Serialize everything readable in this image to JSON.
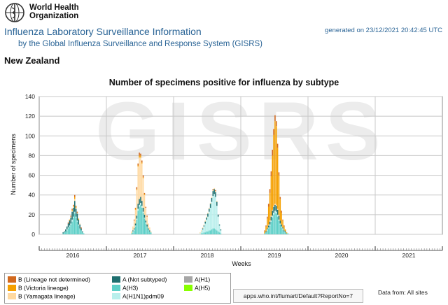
{
  "header": {
    "org_line1": "World Health",
    "org_line2": "Organization",
    "title": "Influenza Laboratory Surveillance Information",
    "subtitle": "by the Global Influenza Surveillance and Response System (GISRS)",
    "generated": "generated on 23/12/2021 20:42:45 UTC",
    "country": "New Zealand"
  },
  "watermark": "GISRS",
  "colors": {
    "b_not_determined": "#d2691e",
    "b_victoria": "#f5a000",
    "b_yamagata": "#ffd9a0",
    "a_not_subtyped": "#1f6f6f",
    "a_h3": "#5ccfc7",
    "a_h1n1pdm09": "#b9efec",
    "a_h1": "#a6a6a6",
    "a_h5": "#88ff00",
    "title_blue": "#2a6496"
  },
  "chart_data": {
    "type": "bar",
    "stacked": true,
    "title": "Number of specimens positive for influenza by subtype",
    "xlabel": "Weeks",
    "ylabel": "Number of specimens",
    "ylim": [
      0,
      140
    ],
    "yticks": [
      0,
      20,
      40,
      60,
      80,
      100,
      120,
      140
    ],
    "grid": true,
    "week_range": [
      0,
      312
    ],
    "year_labels": [
      {
        "label": "2016",
        "week": 26
      },
      {
        "label": "2017",
        "week": 78
      },
      {
        "label": "2018",
        "week": 130
      },
      {
        "label": "2019",
        "week": 182
      },
      {
        "label": "2020",
        "week": 234
      },
      {
        "label": "2021",
        "week": 286
      }
    ],
    "series": [
      {
        "key": "b_not_determined",
        "name": "B (Lineage not determined)"
      },
      {
        "key": "b_victoria",
        "name": "B (Victoria lineage)"
      },
      {
        "key": "b_yamagata",
        "name": "B (Yamagata lineage)"
      },
      {
        "key": "a_not_subtyped",
        "name": "A (Not subtyped)"
      },
      {
        "key": "a_h3",
        "name": "A(H3)"
      },
      {
        "key": "a_h1n1pdm09",
        "name": "A(H1N1)pdm09"
      },
      {
        "key": "a_h1",
        "name": "A(H1)"
      },
      {
        "key": "a_h5",
        "name": "A(H5)"
      }
    ],
    "stack_order": [
      "a_h3",
      "a_h1n1pdm09",
      "a_not_subtyped",
      "b_yamagata",
      "b_victoria",
      "b_not_determined"
    ],
    "weeks": [
      {
        "w": 18,
        "a_h3": 1,
        "a_h1n1pdm09": 0,
        "a_not_subtyped": 1,
        "b_yamagata": 0,
        "b_victoria": 0,
        "b_not_determined": 0
      },
      {
        "w": 19,
        "a_h3": 2,
        "a_h1n1pdm09": 0,
        "a_not_subtyped": 1,
        "b_yamagata": 0,
        "b_victoria": 0,
        "b_not_determined": 0
      },
      {
        "w": 20,
        "a_h3": 3,
        "a_h1n1pdm09": 0,
        "a_not_subtyped": 2,
        "b_yamagata": 0,
        "b_victoria": 0,
        "b_not_determined": 0
      },
      {
        "w": 21,
        "a_h3": 4,
        "a_h1n1pdm09": 1,
        "a_not_subtyped": 3,
        "b_yamagata": 0,
        "b_victoria": 0,
        "b_not_determined": 0
      },
      {
        "w": 22,
        "a_h3": 6,
        "a_h1n1pdm09": 1,
        "a_not_subtyped": 4,
        "b_yamagata": 0,
        "b_victoria": 0,
        "b_not_determined": 1
      },
      {
        "w": 23,
        "a_h3": 8,
        "a_h1n1pdm09": 1,
        "a_not_subtyped": 5,
        "b_yamagata": 0,
        "b_victoria": 1,
        "b_not_determined": 0
      },
      {
        "w": 24,
        "a_h3": 10,
        "a_h1n1pdm09": 1,
        "a_not_subtyped": 6,
        "b_yamagata": 1,
        "b_victoria": 0,
        "b_not_determined": 1
      },
      {
        "w": 25,
        "a_h3": 13,
        "a_h1n1pdm09": 2,
        "a_not_subtyped": 8,
        "b_yamagata": 1,
        "b_victoria": 1,
        "b_not_determined": 1
      },
      {
        "w": 26,
        "a_h3": 17,
        "a_h1n1pdm09": 1,
        "a_not_subtyped": 9,
        "b_yamagata": 1,
        "b_victoria": 1,
        "b_not_determined": 1
      },
      {
        "w": 27,
        "a_h3": 21,
        "a_h1n1pdm09": 2,
        "a_not_subtyped": 11,
        "b_yamagata": 2,
        "b_victoria": 2,
        "b_not_determined": 2
      },
      {
        "w": 28,
        "a_h3": 17,
        "a_h1n1pdm09": 1,
        "a_not_subtyped": 8,
        "b_yamagata": 1,
        "b_victoria": 1,
        "b_not_determined": 1
      },
      {
        "w": 29,
        "a_h3": 13,
        "a_h1n1pdm09": 1,
        "a_not_subtyped": 7,
        "b_yamagata": 1,
        "b_victoria": 0,
        "b_not_determined": 1
      },
      {
        "w": 30,
        "a_h3": 9,
        "a_h1n1pdm09": 1,
        "a_not_subtyped": 5,
        "b_yamagata": 0,
        "b_victoria": 1,
        "b_not_determined": 0
      },
      {
        "w": 31,
        "a_h3": 6,
        "a_h1n1pdm09": 0,
        "a_not_subtyped": 4,
        "b_yamagata": 1,
        "b_victoria": 0,
        "b_not_determined": 0
      },
      {
        "w": 32,
        "a_h3": 4,
        "a_h1n1pdm09": 0,
        "a_not_subtyped": 2,
        "b_yamagata": 0,
        "b_victoria": 0,
        "b_not_determined": 1
      },
      {
        "w": 33,
        "a_h3": 2,
        "a_h1n1pdm09": 0,
        "a_not_subtyped": 1,
        "b_yamagata": 0,
        "b_victoria": 0,
        "b_not_determined": 0
      },
      {
        "w": 34,
        "a_h3": 1,
        "a_h1n1pdm09": 0,
        "a_not_subtyped": 0,
        "b_yamagata": 0,
        "b_victoria": 0,
        "b_not_determined": 0
      },
      {
        "w": 71,
        "a_h3": 1,
        "a_h1n1pdm09": 0,
        "a_not_subtyped": 0,
        "b_yamagata": 2,
        "b_victoria": 0,
        "b_not_determined": 0
      },
      {
        "w": 72,
        "a_h3": 2,
        "a_h1n1pdm09": 1,
        "a_not_subtyped": 1,
        "b_yamagata": 4,
        "b_victoria": 0,
        "b_not_determined": 0
      },
      {
        "w": 73,
        "a_h3": 4,
        "a_h1n1pdm09": 1,
        "a_not_subtyped": 1,
        "b_yamagata": 8,
        "b_victoria": 0,
        "b_not_determined": 1
      },
      {
        "w": 74,
        "a_h3": 8,
        "a_h1n1pdm09": 1,
        "a_not_subtyped": 2,
        "b_yamagata": 14,
        "b_victoria": 1,
        "b_not_determined": 1
      },
      {
        "w": 75,
        "a_h3": 15,
        "a_h1n1pdm09": 1,
        "a_not_subtyped": 3,
        "b_yamagata": 26,
        "b_victoria": 1,
        "b_not_determined": 2
      },
      {
        "w": 76,
        "a_h3": 24,
        "a_h1n1pdm09": 2,
        "a_not_subtyped": 5,
        "b_yamagata": 38,
        "b_victoria": 1,
        "b_not_determined": 2
      },
      {
        "w": 77,
        "a_h3": 28,
        "a_h1n1pdm09": 2,
        "a_not_subtyped": 6,
        "b_yamagata": 42,
        "b_victoria": 2,
        "b_not_determined": 3
      },
      {
        "w": 78,
        "a_h3": 30,
        "a_h1n1pdm09": 2,
        "a_not_subtyped": 6,
        "b_yamagata": 40,
        "b_victoria": 2,
        "b_not_determined": 2
      },
      {
        "w": 79,
        "a_h3": 27,
        "a_h1n1pdm09": 2,
        "a_not_subtyped": 5,
        "b_yamagata": 38,
        "b_victoria": 1,
        "b_not_determined": 2
      },
      {
        "w": 80,
        "a_h3": 22,
        "a_h1n1pdm09": 1,
        "a_not_subtyped": 4,
        "b_yamagata": 30,
        "b_victoria": 1,
        "b_not_determined": 2
      },
      {
        "w": 81,
        "a_h3": 16,
        "a_h1n1pdm09": 1,
        "a_not_subtyped": 3,
        "b_yamagata": 20,
        "b_victoria": 1,
        "b_not_determined": 1
      },
      {
        "w": 82,
        "a_h3": 11,
        "a_h1n1pdm09": 1,
        "a_not_subtyped": 2,
        "b_yamagata": 13,
        "b_victoria": 0,
        "b_not_determined": 1
      },
      {
        "w": 83,
        "a_h3": 8,
        "a_h1n1pdm09": 0,
        "a_not_subtyped": 2,
        "b_yamagata": 8,
        "b_victoria": 0,
        "b_not_determined": 1
      },
      {
        "w": 84,
        "a_h3": 5,
        "a_h1n1pdm09": 0,
        "a_not_subtyped": 1,
        "b_yamagata": 5,
        "b_victoria": 0,
        "b_not_determined": 0
      },
      {
        "w": 85,
        "a_h3": 3,
        "a_h1n1pdm09": 0,
        "a_not_subtyped": 1,
        "b_yamagata": 3,
        "b_victoria": 0,
        "b_not_determined": 0
      },
      {
        "w": 86,
        "a_h3": 2,
        "a_h1n1pdm09": 0,
        "a_not_subtyped": 0,
        "b_yamagata": 1,
        "b_victoria": 0,
        "b_not_determined": 0
      },
      {
        "w": 124,
        "a_h3": 0,
        "a_h1n1pdm09": 1,
        "a_not_subtyped": 0,
        "b_yamagata": 1,
        "b_victoria": 0,
        "b_not_determined": 0
      },
      {
        "w": 125,
        "a_h3": 1,
        "a_h1n1pdm09": 2,
        "a_not_subtyped": 0,
        "b_yamagata": 1,
        "b_victoria": 0,
        "b_not_determined": 0
      },
      {
        "w": 126,
        "a_h3": 1,
        "a_h1n1pdm09": 4,
        "a_not_subtyped": 1,
        "b_yamagata": 1,
        "b_victoria": 0,
        "b_not_determined": 0
      },
      {
        "w": 127,
        "a_h3": 2,
        "a_h1n1pdm09": 6,
        "a_not_subtyped": 1,
        "b_yamagata": 1,
        "b_victoria": 0,
        "b_not_determined": 0
      },
      {
        "w": 128,
        "a_h3": 2,
        "a_h1n1pdm09": 9,
        "a_not_subtyped": 2,
        "b_yamagata": 1,
        "b_victoria": 0,
        "b_not_determined": 0
      },
      {
        "w": 129,
        "a_h3": 3,
        "a_h1n1pdm09": 12,
        "a_not_subtyped": 2,
        "b_yamagata": 1,
        "b_victoria": 0,
        "b_not_determined": 0
      },
      {
        "w": 130,
        "a_h3": 3,
        "a_h1n1pdm09": 15,
        "a_not_subtyped": 3,
        "b_yamagata": 1,
        "b_victoria": 0,
        "b_not_determined": 0
      },
      {
        "w": 131,
        "a_h3": 4,
        "a_h1n1pdm09": 19,
        "a_not_subtyped": 3,
        "b_yamagata": 1,
        "b_victoria": 0,
        "b_not_determined": 0
      },
      {
        "w": 132,
        "a_h3": 4,
        "a_h1n1pdm09": 23,
        "a_not_subtyped": 4,
        "b_yamagata": 1,
        "b_victoria": 0,
        "b_not_determined": 0
      },
      {
        "w": 133,
        "a_h3": 5,
        "a_h1n1pdm09": 28,
        "a_not_subtyped": 4,
        "b_yamagata": 1,
        "b_victoria": 0,
        "b_not_determined": 0
      },
      {
        "w": 134,
        "a_h3": 6,
        "a_h1n1pdm09": 33,
        "a_not_subtyped": 5,
        "b_yamagata": 1,
        "b_victoria": 0,
        "b_not_determined": 1
      },
      {
        "w": 135,
        "a_h3": 6,
        "a_h1n1pdm09": 35,
        "a_not_subtyped": 5,
        "b_yamagata": 1,
        "b_victoria": 0,
        "b_not_determined": 0
      },
      {
        "w": 136,
        "a_h3": 5,
        "a_h1n1pdm09": 33,
        "a_not_subtyped": 5,
        "b_yamagata": 1,
        "b_victoria": 0,
        "b_not_determined": 1
      },
      {
        "w": 137,
        "a_h3": 4,
        "a_h1n1pdm09": 25,
        "a_not_subtyped": 4,
        "b_yamagata": 1,
        "b_victoria": 0,
        "b_not_determined": 0
      },
      {
        "w": 138,
        "a_h3": 3,
        "a_h1n1pdm09": 15,
        "a_not_subtyped": 2,
        "b_yamagata": 0,
        "b_victoria": 0,
        "b_not_determined": 0
      },
      {
        "w": 139,
        "a_h3": 2,
        "a_h1n1pdm09": 7,
        "a_not_subtyped": 1,
        "b_yamagata": 0,
        "b_victoria": 0,
        "b_not_determined": 0
      },
      {
        "w": 140,
        "a_h3": 1,
        "a_h1n1pdm09": 3,
        "a_not_subtyped": 1,
        "b_yamagata": 0,
        "b_victoria": 0,
        "b_not_determined": 0
      },
      {
        "w": 174,
        "a_h3": 1,
        "a_h1n1pdm09": 0,
        "a_not_subtyped": 0,
        "b_yamagata": 0,
        "b_victoria": 2,
        "b_not_determined": 1
      },
      {
        "w": 175,
        "a_h3": 2,
        "a_h1n1pdm09": 0,
        "a_not_subtyped": 1,
        "b_yamagata": 0,
        "b_victoria": 5,
        "b_not_determined": 1
      },
      {
        "w": 176,
        "a_h3": 4,
        "a_h1n1pdm09": 1,
        "a_not_subtyped": 1,
        "b_yamagata": 0,
        "b_victoria": 10,
        "b_not_determined": 2
      },
      {
        "w": 177,
        "a_h3": 6,
        "a_h1n1pdm09": 1,
        "a_not_subtyped": 2,
        "b_yamagata": 1,
        "b_victoria": 18,
        "b_not_determined": 3
      },
      {
        "w": 178,
        "a_h3": 9,
        "a_h1n1pdm09": 1,
        "a_not_subtyped": 3,
        "b_yamagata": 1,
        "b_victoria": 28,
        "b_not_determined": 4
      },
      {
        "w": 179,
        "a_h3": 13,
        "a_h1n1pdm09": 1,
        "a_not_subtyped": 4,
        "b_yamagata": 1,
        "b_victoria": 40,
        "b_not_determined": 5
      },
      {
        "w": 180,
        "a_h3": 17,
        "a_h1n1pdm09": 2,
        "a_not_subtyped": 5,
        "b_yamagata": 1,
        "b_victoria": 55,
        "b_not_determined": 6
      },
      {
        "w": 181,
        "a_h3": 20,
        "a_h1n1pdm09": 2,
        "a_not_subtyped": 6,
        "b_yamagata": 1,
        "b_victoria": 72,
        "b_not_determined": 6
      },
      {
        "w": 182,
        "a_h3": 22,
        "a_h1n1pdm09": 2,
        "a_not_subtyped": 6,
        "b_yamagata": 1,
        "b_victoria": 84,
        "b_not_determined": 6
      },
      {
        "w": 183,
        "a_h3": 21,
        "a_h1n1pdm09": 2,
        "a_not_subtyped": 6,
        "b_yamagata": 1,
        "b_victoria": 80,
        "b_not_determined": 5
      },
      {
        "w": 184,
        "a_h3": 18,
        "a_h1n1pdm09": 2,
        "a_not_subtyped": 5,
        "b_yamagata": 1,
        "b_victoria": 62,
        "b_not_determined": 4
      },
      {
        "w": 185,
        "a_h3": 14,
        "a_h1n1pdm09": 1,
        "a_not_subtyped": 4,
        "b_yamagata": 1,
        "b_victoria": 40,
        "b_not_determined": 3
      },
      {
        "w": 186,
        "a_h3": 10,
        "a_h1n1pdm09": 1,
        "a_not_subtyped": 3,
        "b_yamagata": 0,
        "b_victoria": 22,
        "b_not_determined": 2
      },
      {
        "w": 187,
        "a_h3": 7,
        "a_h1n1pdm09": 1,
        "a_not_subtyped": 2,
        "b_yamagata": 0,
        "b_victoria": 12,
        "b_not_determined": 2
      },
      {
        "w": 188,
        "a_h3": 5,
        "a_h1n1pdm09": 1,
        "a_not_subtyped": 1,
        "b_yamagata": 0,
        "b_victoria": 7,
        "b_not_determined": 1
      },
      {
        "w": 189,
        "a_h3": 3,
        "a_h1n1pdm09": 0,
        "a_not_subtyped": 1,
        "b_yamagata": 0,
        "b_victoria": 4,
        "b_not_determined": 1
      },
      {
        "w": 190,
        "a_h3": 2,
        "a_h1n1pdm09": 0,
        "a_not_subtyped": 1,
        "b_yamagata": 0,
        "b_victoria": 2,
        "b_not_determined": 0
      },
      {
        "w": 191,
        "a_h3": 1,
        "a_h1n1pdm09": 0,
        "a_not_subtyped": 0,
        "b_yamagata": 0,
        "b_victoria": 1,
        "b_not_determined": 0
      },
      {
        "w": 192,
        "a_h3": 1,
        "a_h1n1pdm09": 0,
        "a_not_subtyped": 0,
        "b_yamagata": 0,
        "b_victoria": 0,
        "b_not_determined": 0
      }
    ]
  },
  "footer": {
    "url": "apps.who.int/flumart/Default?ReportNo=7",
    "data_from": "Data from: All sites"
  }
}
